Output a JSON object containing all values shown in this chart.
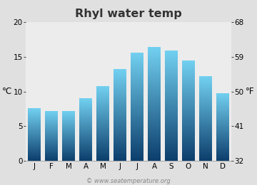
{
  "title": "Rhyl water temp",
  "months": [
    "J",
    "F",
    "M",
    "A",
    "M",
    "J",
    "J",
    "A",
    "S",
    "O",
    "N",
    "D"
  ],
  "temps_c": [
    7.6,
    7.2,
    7.2,
    9.0,
    10.8,
    13.2,
    15.6,
    16.4,
    15.9,
    14.5,
    12.2,
    9.8
  ],
  "ylim_c": [
    0,
    20
  ],
  "yticks_c": [
    0,
    5,
    10,
    15,
    20
  ],
  "yticks_f": [
    32,
    41,
    50,
    59,
    68
  ],
  "ylabel_left": "°C",
  "ylabel_right": "°F",
  "bar_color_top": "#72d0f0",
  "bar_color_bottom": "#0b3d6b",
  "fig_bg_color": "#e0e0e0",
  "plot_bg_color": "#ececec",
  "watermark": "© www.seatemperature.org",
  "title_fontsize": 11.5,
  "tick_fontsize": 7.5,
  "label_fontsize": 8.5,
  "watermark_fontsize": 6.0
}
